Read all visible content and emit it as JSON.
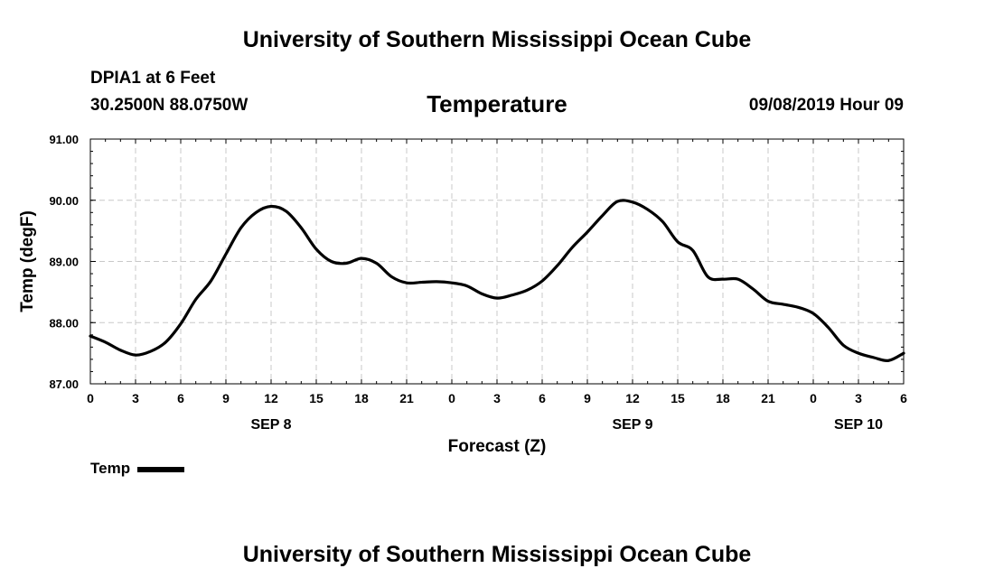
{
  "header": {
    "title": "University of Southern Mississippi Ocean Cube",
    "station": "DPIA1 at 6 Feet",
    "coords": "30.2500N 88.0750W",
    "variable": "Temperature",
    "datetime": "09/08/2019 Hour 09"
  },
  "footer": {
    "title": "University of Southern Mississippi Ocean Cube"
  },
  "legend": {
    "label": "Temp",
    "color": "#000000"
  },
  "chart_data": {
    "type": "line",
    "title": "Temperature",
    "xlabel": "Forecast (Z)",
    "ylabel": "Temp (degF)",
    "ylim": [
      87.0,
      91.0
    ],
    "xlim": [
      0,
      54
    ],
    "ytick_labels": [
      "87.00",
      "88.00",
      "89.00",
      "90.00",
      "91.00"
    ],
    "ytick_values": [
      87,
      88,
      89,
      90,
      91
    ],
    "xtick_labels": [
      "0",
      "3",
      "6",
      "9",
      "12",
      "15",
      "18",
      "21",
      "0",
      "3",
      "6",
      "9",
      "12",
      "15",
      "18",
      "21",
      "0",
      "3",
      "6"
    ],
    "day_labels": [
      {
        "label": "SEP 8",
        "x": 12
      },
      {
        "label": "SEP 9",
        "x": 36
      },
      {
        "label": "SEP 10",
        "x": 51
      }
    ],
    "grid": true,
    "series": [
      {
        "name": "Temp",
        "color": "#000000",
        "x": [
          0,
          1,
          2,
          3,
          4,
          5,
          6,
          7,
          8,
          9,
          10,
          11,
          12,
          13,
          14,
          15,
          16,
          17,
          18,
          19,
          20,
          21,
          22,
          23,
          24,
          25,
          26,
          27,
          28,
          29,
          30,
          31,
          32,
          33,
          34,
          35,
          36,
          37,
          38,
          39,
          40,
          41,
          42,
          43,
          44,
          45,
          46,
          47,
          48,
          49,
          50,
          51,
          52,
          53,
          54
        ],
        "values": [
          87.78,
          87.68,
          87.55,
          87.47,
          87.53,
          87.68,
          87.98,
          88.38,
          88.68,
          89.12,
          89.55,
          89.8,
          89.9,
          89.82,
          89.55,
          89.2,
          89.0,
          88.97,
          89.05,
          88.97,
          88.75,
          88.65,
          88.66,
          88.67,
          88.65,
          88.6,
          88.47,
          88.4,
          88.45,
          88.53,
          88.68,
          88.93,
          89.23,
          89.48,
          89.75,
          89.98,
          89.97,
          89.85,
          89.65,
          89.32,
          89.18,
          88.75,
          88.71,
          88.71,
          88.55,
          88.35,
          88.3,
          88.25,
          88.15,
          87.92,
          87.63,
          87.5,
          87.43,
          87.38,
          87.5
        ]
      }
    ]
  }
}
